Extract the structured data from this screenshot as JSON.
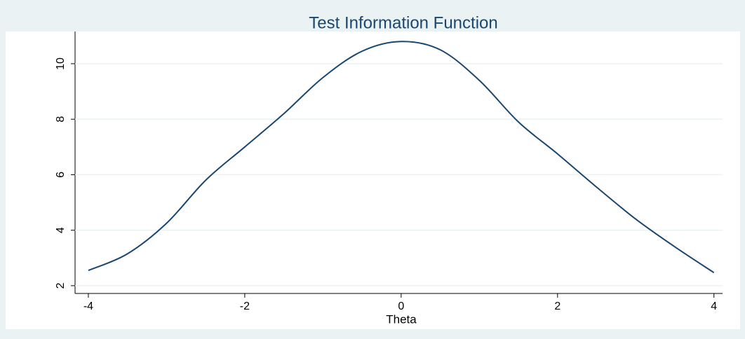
{
  "chart_data": {
    "type": "line",
    "title": "Test Information Function",
    "x_label": "Theta",
    "x": [
      -4,
      -3.5,
      -3,
      -2.5,
      -2,
      -1.5,
      -1,
      -0.5,
      0,
      0.5,
      1,
      1.5,
      2,
      2.5,
      3,
      3.5,
      4
    ],
    "series": [
      {
        "color": "#1a476f",
        "values": [
          2.55,
          3.15,
          4.25,
          5.8,
          7.0,
          8.2,
          9.5,
          10.45,
          10.8,
          10.5,
          9.4,
          7.9,
          6.75,
          5.55,
          4.4,
          3.4,
          2.47
        ]
      }
    ],
    "xlim": [
      -4.17,
      4.11
    ],
    "xticks": [
      -4,
      -2,
      0,
      2,
      4
    ],
    "ylim": [
      1.72,
      11.16
    ],
    "yticks": [
      2,
      4,
      6,
      8,
      10
    ],
    "grid": true
  }
}
